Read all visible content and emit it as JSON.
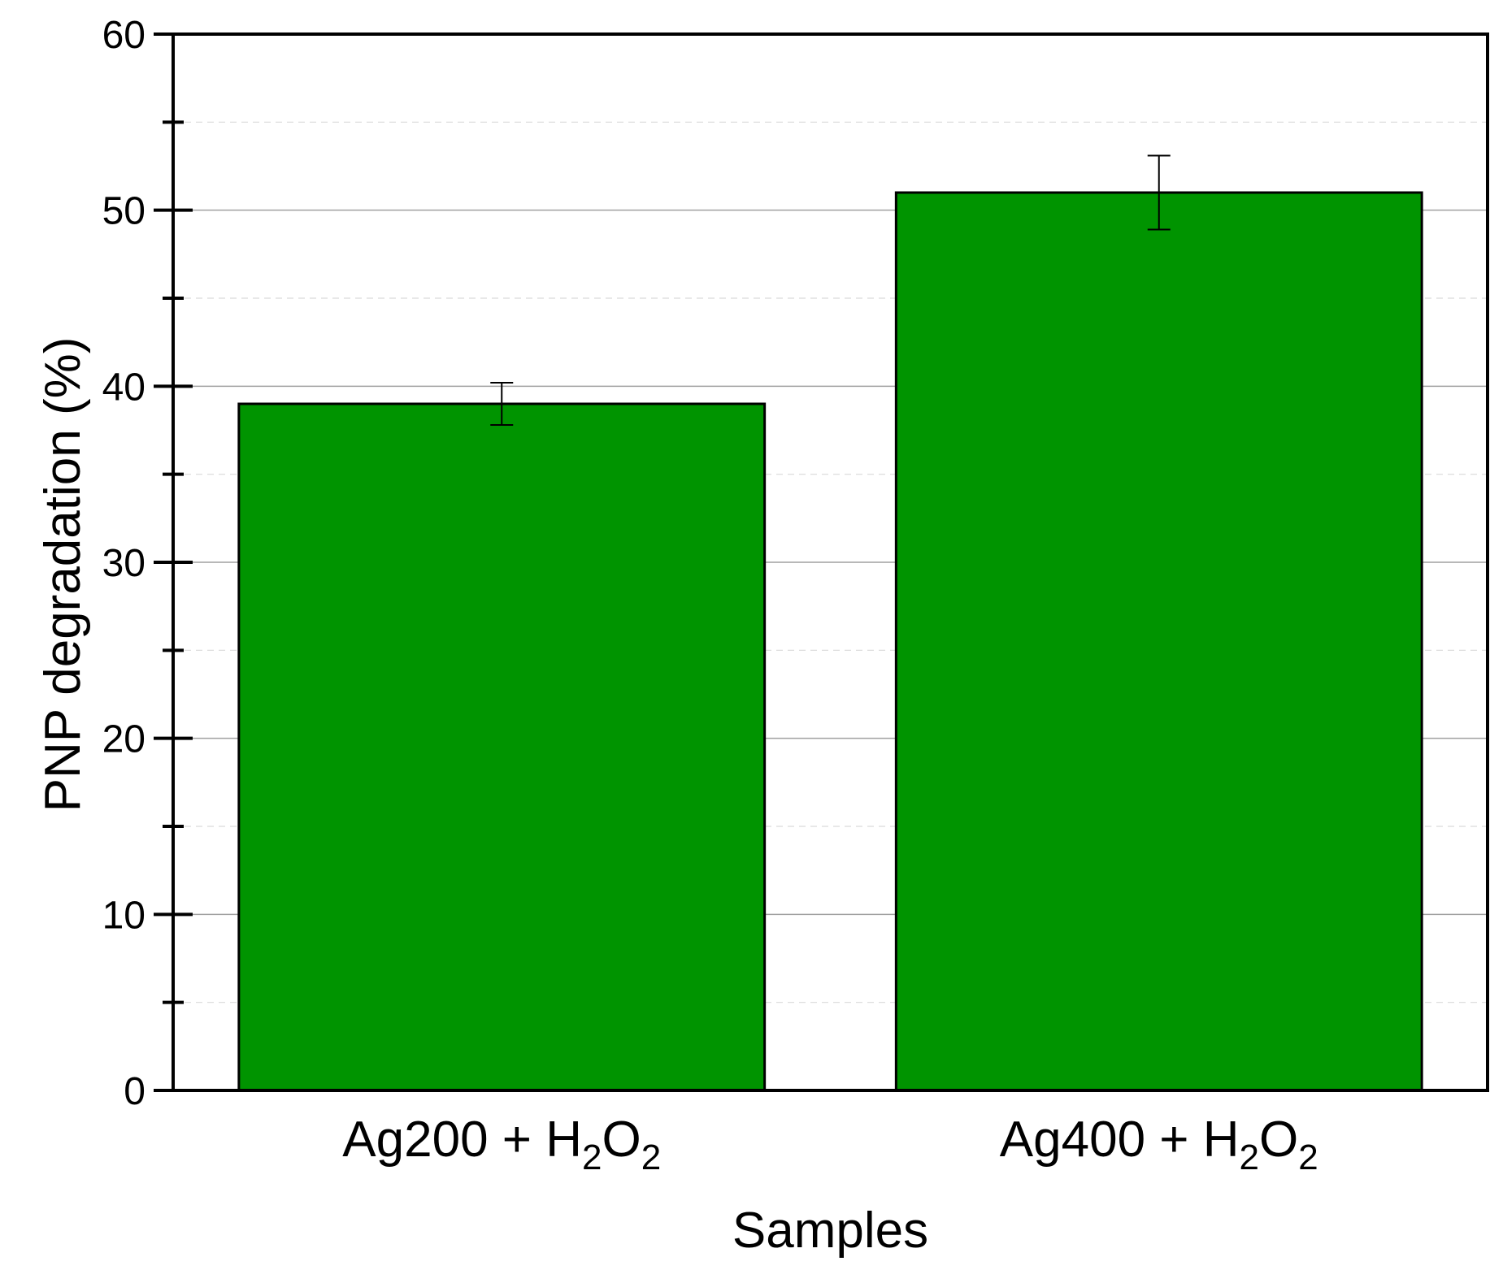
{
  "chart_data": {
    "type": "bar",
    "title": "",
    "xlabel": "Samples",
    "ylabel": "PNP degradation (%)",
    "categories": [
      {
        "base": "Ag200 + H",
        "sub1": "2",
        "mid": "O",
        "sub2": "2"
      },
      {
        "base": "Ag400 + H",
        "sub1": "2",
        "mid": "O",
        "sub2": "2"
      }
    ],
    "values": [
      39,
      51
    ],
    "errors": [
      1.2,
      2.1
    ],
    "ylim": [
      0,
      60
    ],
    "yticks": [
      0,
      10,
      20,
      30,
      40,
      50,
      60
    ],
    "minor_yticks": [
      5,
      15,
      25,
      35,
      45,
      55
    ],
    "grid": true,
    "legend": "none",
    "colors": {
      "bar": "#009400",
      "bar_edge": "#000000",
      "grid_major": "#a0a0a0",
      "grid_minor": "#d9d9d9",
      "axis": "#000000"
    }
  }
}
